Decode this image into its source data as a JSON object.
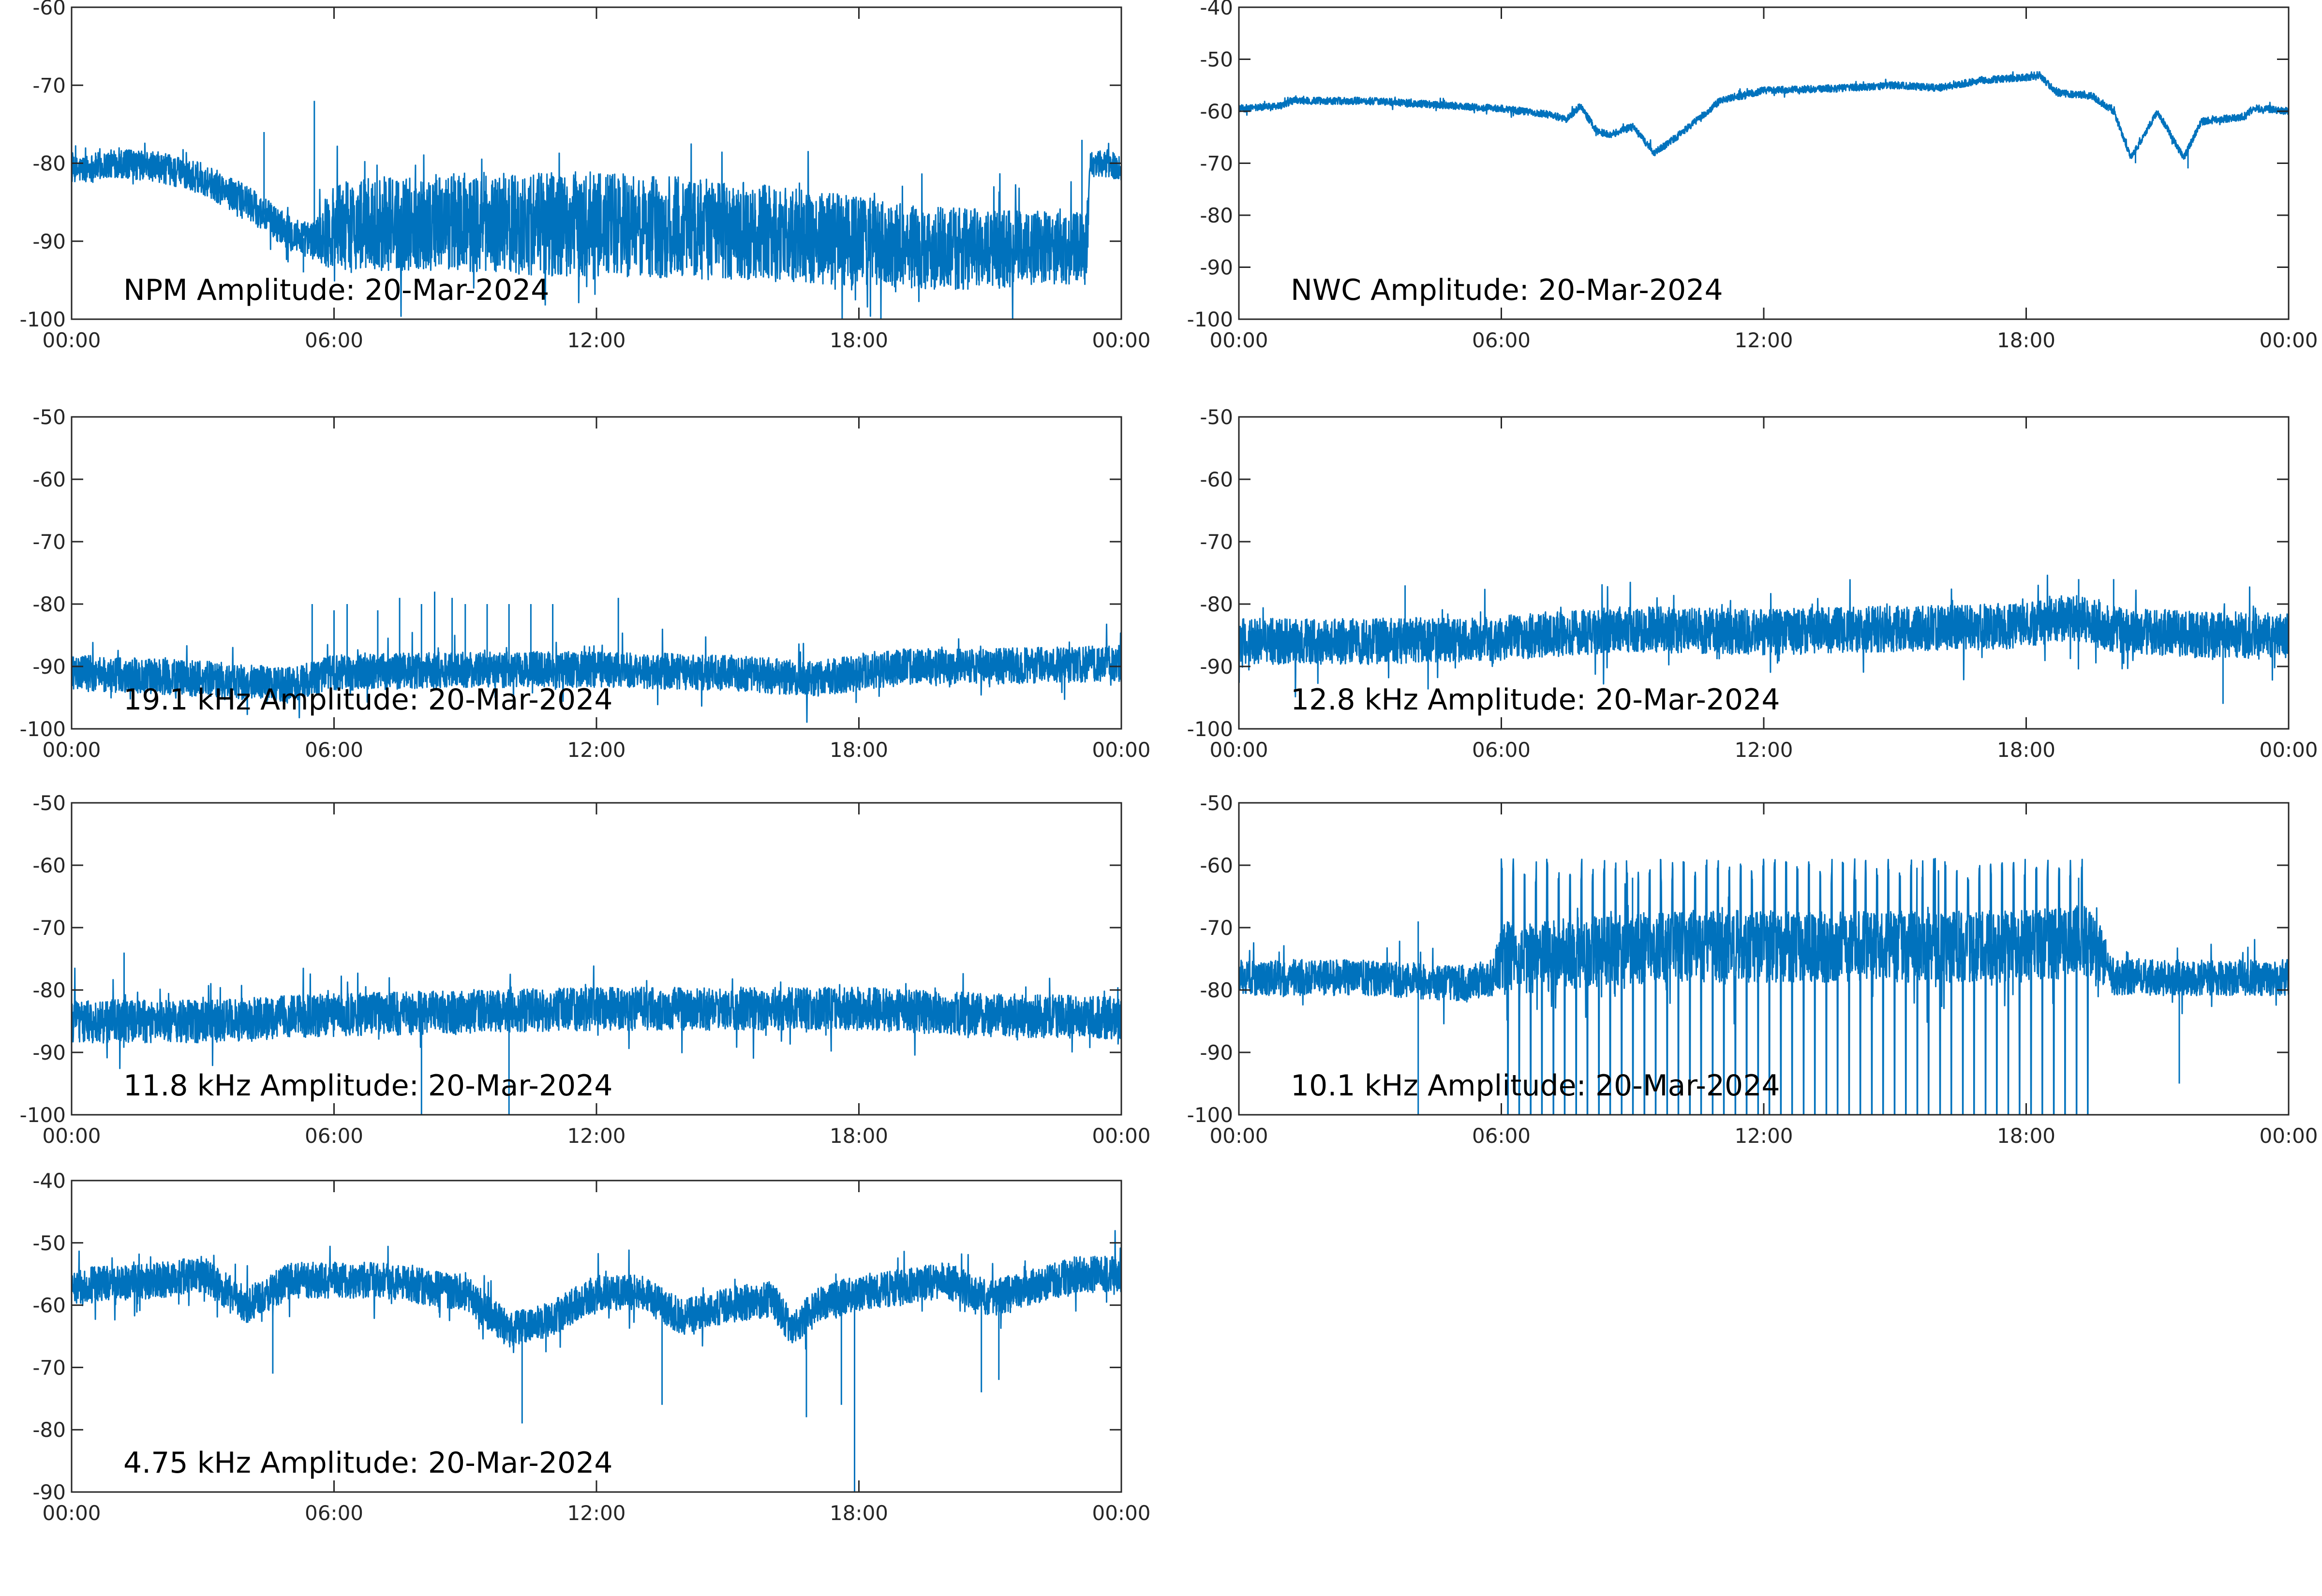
{
  "figure_background": "#ffffff",
  "trace_color": "#0072bd",
  "axes_color": "#262626",
  "chart_data": [
    {
      "type": "line",
      "title": "NPM Amplitude: 20-Mar-2024",
      "x_tick_labels": [
        "00:00",
        "06:00",
        "12:00",
        "18:00",
        "00:00"
      ],
      "y_ticks": [
        -100,
        -90,
        -80,
        -70,
        -60
      ],
      "ylim": [
        -100,
        -60
      ],
      "xlim_hours": [
        0,
        24
      ],
      "grid": false,
      "series": [
        {
          "color": "#0072bd",
          "mean": [
            [
              0,
              -81
            ],
            [
              1,
              -80
            ],
            [
              2,
              -80.5
            ],
            [
              3,
              -82
            ],
            [
              4,
              -85
            ],
            [
              5,
              -89
            ],
            [
              5.5,
              -90
            ],
            [
              6,
              -88
            ],
            [
              9,
              -87.5
            ],
            [
              12,
              -88
            ],
            [
              15,
              -88.5
            ],
            [
              18,
              -90
            ],
            [
              20,
              -91
            ],
            [
              22,
              -91
            ],
            [
              23.2,
              -91
            ],
            [
              23.3,
              -80
            ],
            [
              24,
              -80.5
            ]
          ],
          "spread": [
            [
              0,
              1.5
            ],
            [
              5.5,
              2
            ],
            [
              6,
              5
            ],
            [
              12,
              6
            ],
            [
              18,
              5
            ],
            [
              23.2,
              4
            ],
            [
              23.3,
              1.5
            ],
            [
              24,
              1.5
            ]
          ],
          "spikes": [
            [
              4.4,
              -76
            ],
            [
              5.55,
              -72
            ],
            [
              23.1,
              -77
            ],
            [
              5.3,
              -94
            ]
          ]
        }
      ]
    },
    {
      "type": "line",
      "title": "NWC Amplitude: 20-Mar-2024",
      "x_tick_labels": [
        "00:00",
        "06:00",
        "12:00",
        "18:00",
        "00:00"
      ],
      "y_ticks": [
        -100,
        -90,
        -80,
        -70,
        -60,
        -50,
        -40
      ],
      "ylim": [
        -100,
        -40
      ],
      "xlim_hours": [
        0,
        24
      ],
      "grid": false,
      "series": [
        {
          "color": "#0072bd",
          "mean": [
            [
              0,
              -59.5
            ],
            [
              1,
              -59
            ],
            [
              1.2,
              -58
            ],
            [
              2,
              -58
            ],
            [
              3,
              -58
            ],
            [
              5,
              -59
            ],
            [
              6,
              -59.5
            ],
            [
              7,
              -60.5
            ],
            [
              7.5,
              -61.5
            ],
            [
              7.8,
              -59
            ],
            [
              8.2,
              -64
            ],
            [
              8.5,
              -64.5
            ],
            [
              9,
              -63
            ],
            [
              9.5,
              -68
            ],
            [
              10,
              -65
            ],
            [
              11,
              -58
            ],
            [
              12,
              -56
            ],
            [
              14,
              -55.5
            ],
            [
              15,
              -55
            ],
            [
              16,
              -55.5
            ],
            [
              17,
              -54
            ],
            [
              18,
              -53.5
            ],
            [
              18.3,
              -53
            ],
            [
              18.7,
              -56.5
            ],
            [
              19.5,
              -57
            ],
            [
              20,
              -60
            ],
            [
              20.4,
              -69
            ],
            [
              20.8,
              -63
            ],
            [
              21,
              -60
            ],
            [
              21.6,
              -69
            ],
            [
              22,
              -62
            ],
            [
              22.5,
              -61.5
            ],
            [
              23,
              -61
            ],
            [
              23.2,
              -59.5
            ],
            [
              23.5,
              -59.5
            ],
            [
              24,
              -60
            ]
          ],
          "spread": [
            [
              0,
              0.6
            ],
            [
              24,
              0.6
            ]
          ],
          "spikes": [
            [
              20.5,
              -70
            ],
            [
              21.7,
              -71
            ]
          ]
        }
      ]
    },
    {
      "type": "line",
      "title": "19.1 kHz Amplitude: 20-Mar-2024",
      "x_tick_labels": [
        "00:00",
        "06:00",
        "12:00",
        "18:00",
        "00:00"
      ],
      "y_ticks": [
        -100,
        -90,
        -80,
        -70,
        -60,
        -50
      ],
      "ylim": [
        -100,
        -50
      ],
      "xlim_hours": [
        0,
        24
      ],
      "grid": false,
      "series": [
        {
          "color": "#0072bd",
          "mean": [
            [
              0,
              -91
            ],
            [
              3,
              -92
            ],
            [
              5,
              -93
            ],
            [
              6,
              -91
            ],
            [
              9,
              -90.5
            ],
            [
              12,
              -90.5
            ],
            [
              15,
              -91
            ],
            [
              17,
              -92
            ],
            [
              18,
              -91
            ],
            [
              19,
              -90
            ],
            [
              21,
              -90
            ],
            [
              24,
              -89.5
            ]
          ],
          "spread": [
            [
              0,
              2.5
            ],
            [
              24,
              2.5
            ]
          ],
          "spikes": [
            [
              5.5,
              -80
            ],
            [
              6,
              -81
            ],
            [
              6.3,
              -80
            ],
            [
              7,
              -81
            ],
            [
              7.5,
              -79
            ],
            [
              8,
              -80
            ],
            [
              8.3,
              -78
            ],
            [
              8.7,
              -79
            ],
            [
              9,
              -80
            ],
            [
              9.5,
              -80
            ],
            [
              10,
              -80
            ],
            [
              10.5,
              -80
            ],
            [
              11,
              -80
            ],
            [
              12.5,
              -79
            ]
          ]
        }
      ]
    },
    {
      "type": "line",
      "title": "12.8 kHz Amplitude: 20-Mar-2024",
      "x_tick_labels": [
        "00:00",
        "06:00",
        "12:00",
        "18:00",
        "00:00"
      ],
      "y_ticks": [
        -100,
        -90,
        -80,
        -70,
        -60,
        -50
      ],
      "ylim": [
        -100,
        -50
      ],
      "xlim_hours": [
        0,
        24
      ],
      "grid": false,
      "series": [
        {
          "color": "#0072bd",
          "mean": [
            [
              0,
              -86
            ],
            [
              3,
              -86
            ],
            [
              6,
              -85.5
            ],
            [
              9,
              -84
            ],
            [
              12,
              -84.5
            ],
            [
              15,
              -84
            ],
            [
              18,
              -83.5
            ],
            [
              19,
              -82
            ],
            [
              20,
              -84
            ],
            [
              22,
              -85
            ],
            [
              24,
              -85
            ]
          ],
          "spread": [
            [
              0,
              3.2
            ],
            [
              24,
              3.2
            ]
          ],
          "spikes": [
            [
              19.2,
              -76
            ],
            [
              20,
              -76
            ],
            [
              3.8,
              -77
            ],
            [
              22.5,
              -96
            ]
          ]
        }
      ]
    },
    {
      "type": "line",
      "title": "11.8 kHz Amplitude: 20-Mar-2024",
      "x_tick_labels": [
        "00:00",
        "06:00",
        "12:00",
        "18:00",
        "00:00"
      ],
      "y_ticks": [
        -100,
        -90,
        -80,
        -70,
        -60,
        -50
      ],
      "ylim": [
        -100,
        -50
      ],
      "xlim_hours": [
        0,
        24
      ],
      "grid": false,
      "series": [
        {
          "color": "#0072bd",
          "mean": [
            [
              0,
              -85
            ],
            [
              3,
              -85
            ],
            [
              6,
              -84
            ],
            [
              9,
              -83.5
            ],
            [
              12,
              -83
            ],
            [
              15,
              -83
            ],
            [
              18,
              -83
            ],
            [
              21,
              -84
            ],
            [
              24,
              -84.5
            ]
          ],
          "spread": [
            [
              0,
              3
            ],
            [
              24,
              3
            ]
          ],
          "spikes": [
            [
              1.2,
              -74
            ],
            [
              8,
              -100
            ],
            [
              10,
              -100
            ],
            [
              24,
              -92
            ]
          ]
        }
      ]
    },
    {
      "type": "line",
      "title": "10.1 kHz Amplitude: 20-Mar-2024",
      "x_tick_labels": [
        "00:00",
        "06:00",
        "12:00",
        "18:00",
        "00:00"
      ],
      "y_ticks": [
        -100,
        -90,
        -80,
        -70,
        -60,
        -50
      ],
      "ylim": [
        -100,
        -50
      ],
      "xlim_hours": [
        0,
        24
      ],
      "grid": false,
      "series": [
        {
          "color": "#0072bd",
          "mean": [
            [
              0,
              -78
            ],
            [
              3,
              -78
            ],
            [
              5,
              -79
            ],
            [
              5.8,
              -78
            ],
            [
              6,
              -75
            ],
            [
              10,
              -73
            ],
            [
              14,
              -73
            ],
            [
              16,
              -73
            ],
            [
              18,
              -73
            ],
            [
              19.5,
              -72
            ],
            [
              20,
              -78
            ],
            [
              24,
              -78
            ]
          ],
          "spread": [
            [
              0,
              2.5
            ],
            [
              5.8,
              2.5
            ],
            [
              6,
              5
            ],
            [
              19.5,
              5
            ],
            [
              20,
              2.5
            ],
            [
              24,
              2.5
            ]
          ],
          "spikes": [
            [
              4.1,
              -69
            ],
            [
              4.1,
              -100
            ],
            [
              9,
              -62
            ],
            [
              19.2,
              -62
            ],
            [
              21.5,
              -95
            ]
          ],
          "burst_window_hours": [
            6,
            19.5
          ],
          "burst_peak": -63,
          "burst_trough": -100
        }
      ]
    },
    {
      "type": "line",
      "title": "4.75 kHz Amplitude: 20-Mar-2024",
      "x_tick_labels": [
        "00:00",
        "06:00",
        "12:00",
        "18:00",
        "00:00"
      ],
      "y_ticks": [
        -90,
        -80,
        -70,
        -60,
        -50,
        -40
      ],
      "ylim": [
        -90,
        -40
      ],
      "xlim_hours": [
        0,
        24
      ],
      "grid": false,
      "series": [
        {
          "color": "#0072bd",
          "mean": [
            [
              0,
              -57
            ],
            [
              2,
              -56
            ],
            [
              3,
              -55
            ],
            [
              4,
              -60
            ],
            [
              5,
              -56
            ],
            [
              7,
              -56
            ],
            [
              9,
              -58
            ],
            [
              10,
              -64
            ],
            [
              11,
              -62
            ],
            [
              12,
              -58
            ],
            [
              13,
              -58
            ],
            [
              14,
              -62
            ],
            [
              15,
              -60
            ],
            [
              16,
              -59
            ],
            [
              16.5,
              -64
            ],
            [
              17,
              -60
            ],
            [
              18,
              -58
            ],
            [
              19,
              -57
            ],
            [
              20,
              -56
            ],
            [
              21,
              -59
            ],
            [
              22,
              -57
            ],
            [
              23,
              -55
            ],
            [
              24,
              -55
            ]
          ],
          "spread": [
            [
              0,
              2.5
            ],
            [
              24,
              2.5
            ]
          ],
          "spikes": [
            [
              4.6,
              -71
            ],
            [
              10.3,
              -79
            ],
            [
              13.5,
              -76
            ],
            [
              16.8,
              -78
            ],
            [
              17.6,
              -76
            ],
            [
              17.9,
              -90
            ],
            [
              20.8,
              -74
            ],
            [
              21.2,
              -72
            ]
          ]
        }
      ]
    }
  ]
}
